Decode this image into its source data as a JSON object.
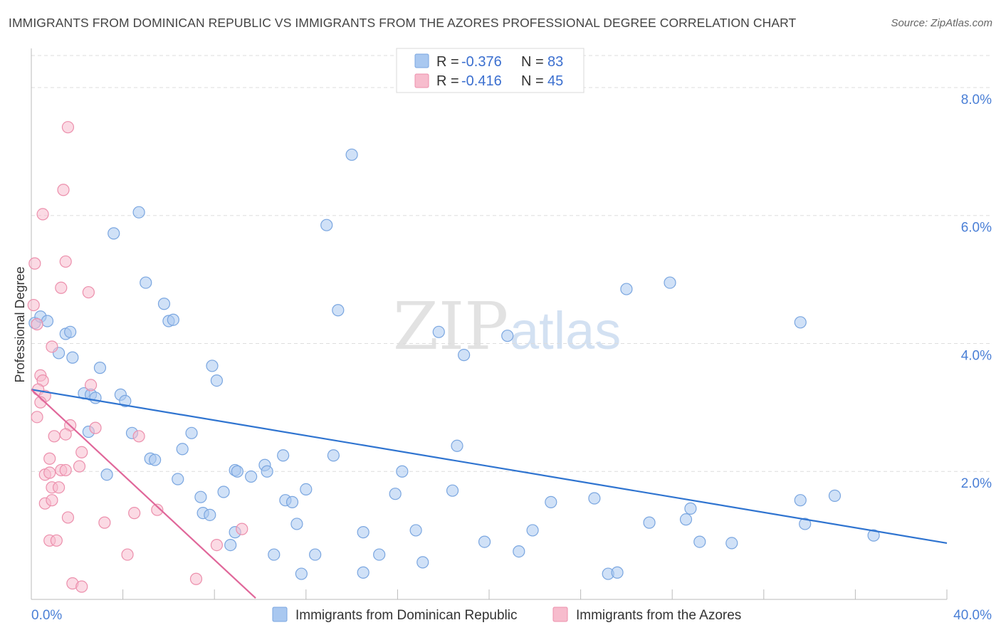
{
  "title": "IMMIGRANTS FROM DOMINICAN REPUBLIC VS IMMIGRANTS FROM THE AZORES PROFESSIONAL DEGREE CORRELATION CHART",
  "source": "Source: ZipAtlas.com",
  "watermark": {
    "zip": "ZIP",
    "atlas": "atlas"
  },
  "colors": {
    "blue_fill": "#a9c8f0",
    "blue_stroke": "#7aa6e0",
    "blue_line": "#2f74d0",
    "pink_fill": "#f7bccd",
    "pink_stroke": "#ec8fac",
    "pink_line": "#e0679a",
    "tick_text": "#4a7fd6",
    "grid": "#dddddd"
  },
  "legend": {
    "series": [
      {
        "r_label": "R = ",
        "r_value": "-0.376",
        "n_label": "N = ",
        "n_value": "83"
      },
      {
        "r_label": "R = ",
        "r_value": "-0.416",
        "n_label": "N = ",
        "n_value": "45"
      }
    ]
  },
  "chart_data": {
    "type": "scatter",
    "ylabel": "Professional Degree",
    "xlim": [
      0,
      40
    ],
    "ylim": [
      0,
      8.5
    ],
    "x_tick_labels": [
      "0.0%",
      "40.0%"
    ],
    "y_ticks": [
      {
        "value": 2,
        "label": "2.0%"
      },
      {
        "value": 4,
        "label": "4.0%"
      },
      {
        "value": 6,
        "label": "6.0%"
      },
      {
        "value": 8,
        "label": "8.0%"
      }
    ],
    "grid": true,
    "series": [
      {
        "name": "Immigrants from Dominican Republic",
        "color": "blue",
        "trend": {
          "x": [
            0,
            40
          ],
          "y": [
            3.28,
            0.88
          ]
        },
        "points": [
          [
            0.15,
            4.32
          ],
          [
            0.4,
            4.42
          ],
          [
            0.7,
            4.35
          ],
          [
            1.5,
            4.15
          ],
          [
            1.7,
            4.18
          ],
          [
            1.8,
            3.78
          ],
          [
            1.2,
            3.85
          ],
          [
            4.7,
            6.05
          ],
          [
            3.6,
            5.72
          ],
          [
            5.0,
            4.95
          ],
          [
            5.8,
            4.62
          ],
          [
            6.0,
            4.35
          ],
          [
            6.2,
            4.37
          ],
          [
            3.0,
            3.62
          ],
          [
            2.3,
            3.22
          ],
          [
            2.6,
            3.2
          ],
          [
            2.8,
            3.15
          ],
          [
            3.9,
            3.2
          ],
          [
            4.1,
            3.1
          ],
          [
            2.5,
            2.62
          ],
          [
            4.4,
            2.6
          ],
          [
            5.2,
            2.2
          ],
          [
            5.4,
            2.18
          ],
          [
            6.6,
            2.35
          ],
          [
            7.0,
            2.6
          ],
          [
            3.3,
            1.95
          ],
          [
            6.4,
            1.88
          ],
          [
            7.4,
            1.6
          ],
          [
            7.5,
            1.35
          ],
          [
            7.8,
            1.32
          ],
          [
            8.4,
            1.68
          ],
          [
            7.9,
            3.65
          ],
          [
            8.1,
            3.42
          ],
          [
            8.9,
            2.02
          ],
          [
            9.0,
            2.0
          ],
          [
            9.6,
            1.92
          ],
          [
            10.2,
            2.1
          ],
          [
            10.3,
            2.0
          ],
          [
            11.0,
            2.25
          ],
          [
            11.1,
            1.55
          ],
          [
            11.4,
            1.52
          ],
          [
            11.6,
            1.18
          ],
          [
            12.0,
            1.72
          ],
          [
            8.9,
            1.05
          ],
          [
            8.7,
            0.85
          ],
          [
            10.6,
            0.7
          ],
          [
            11.8,
            0.4
          ],
          [
            12.4,
            0.7
          ],
          [
            12.9,
            5.85
          ],
          [
            13.4,
            4.52
          ],
          [
            13.2,
            2.25
          ],
          [
            14.0,
            6.95
          ],
          [
            14.5,
            1.05
          ],
          [
            15.2,
            0.7
          ],
          [
            14.5,
            0.42
          ],
          [
            15.9,
            1.65
          ],
          [
            16.8,
            1.08
          ],
          [
            16.2,
            2.0
          ],
          [
            17.1,
            0.58
          ],
          [
            17.8,
            4.18
          ],
          [
            18.4,
            1.7
          ],
          [
            18.6,
            2.4
          ],
          [
            18.9,
            3.82
          ],
          [
            19.8,
            0.9
          ],
          [
            20.8,
            4.12
          ],
          [
            21.3,
            0.75
          ],
          [
            21.9,
            1.08
          ],
          [
            22.7,
            1.52
          ],
          [
            24.6,
            1.58
          ],
          [
            25.2,
            0.4
          ],
          [
            25.6,
            0.42
          ],
          [
            26.0,
            4.85
          ],
          [
            27.0,
            1.2
          ],
          [
            27.9,
            4.95
          ],
          [
            28.6,
            1.25
          ],
          [
            28.8,
            1.42
          ],
          [
            29.2,
            0.9
          ],
          [
            30.6,
            0.88
          ],
          [
            33.6,
            4.33
          ],
          [
            33.6,
            1.55
          ],
          [
            33.8,
            1.18
          ],
          [
            35.1,
            1.62
          ],
          [
            36.8,
            1.0
          ]
        ]
      },
      {
        "name": "Immigrants from the Azores",
        "color": "pink",
        "trend": {
          "x": [
            0,
            9.8
          ],
          "y": [
            3.28,
            0.02
          ]
        },
        "points": [
          [
            1.6,
            7.38
          ],
          [
            1.4,
            6.4
          ],
          [
            0.5,
            6.02
          ],
          [
            0.15,
            5.25
          ],
          [
            1.5,
            5.28
          ],
          [
            1.3,
            4.87
          ],
          [
            2.5,
            4.8
          ],
          [
            0.1,
            4.6
          ],
          [
            0.25,
            4.3
          ],
          [
            0.9,
            3.95
          ],
          [
            0.4,
            3.5
          ],
          [
            0.5,
            3.42
          ],
          [
            0.3,
            3.28
          ],
          [
            0.6,
            3.18
          ],
          [
            0.4,
            3.08
          ],
          [
            2.6,
            3.35
          ],
          [
            0.25,
            2.85
          ],
          [
            1.7,
            2.72
          ],
          [
            2.8,
            2.68
          ],
          [
            1.0,
            2.55
          ],
          [
            1.5,
            2.58
          ],
          [
            4.7,
            2.55
          ],
          [
            0.8,
            2.2
          ],
          [
            2.2,
            2.3
          ],
          [
            2.1,
            2.08
          ],
          [
            1.3,
            2.02
          ],
          [
            1.5,
            2.02
          ],
          [
            0.6,
            1.95
          ],
          [
            0.8,
            1.98
          ],
          [
            0.9,
            1.75
          ],
          [
            1.2,
            1.75
          ],
          [
            0.6,
            1.5
          ],
          [
            0.9,
            1.55
          ],
          [
            1.6,
            1.28
          ],
          [
            3.2,
            1.2
          ],
          [
            4.5,
            1.35
          ],
          [
            5.5,
            1.4
          ],
          [
            0.8,
            0.92
          ],
          [
            1.1,
            0.92
          ],
          [
            4.2,
            0.7
          ],
          [
            8.1,
            0.85
          ],
          [
            9.2,
            1.1
          ],
          [
            1.8,
            0.25
          ],
          [
            2.2,
            0.2
          ],
          [
            7.2,
            0.32
          ]
        ]
      }
    ]
  }
}
